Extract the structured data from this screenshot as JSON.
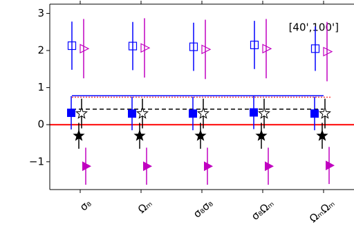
{
  "chart_data": {
    "type": "errorbar",
    "categories": [
      "σ₈",
      "Ωₘ",
      "σ₈σ₈",
      "σ₈Ωₘ",
      "ΩₘΩₘ"
    ],
    "annotation": "[40',100']",
    "ylim": [
      -1.75,
      3.25
    ],
    "yticks": [
      {
        "value": -1,
        "label": "−1"
      },
      0,
      1,
      2,
      3
    ],
    "series": [
      {
        "marker": "square-open",
        "color": "#0000ff",
        "values": [
          2.13,
          2.12,
          2.1,
          2.15,
          2.05
        ],
        "errors": [
          0.65,
          0.65,
          0.65,
          0.65,
          0.6
        ]
      },
      {
        "marker": "triangle-open",
        "color": "#c000c0",
        "values": [
          2.05,
          2.07,
          2.03,
          2.05,
          1.97
        ],
        "errors": [
          0.8,
          0.8,
          0.8,
          0.8,
          0.8
        ]
      },
      {
        "marker": "square-filled",
        "color": "#0000ff",
        "values": [
          0.32,
          0.3,
          0.3,
          0.33,
          0.3
        ],
        "errors": [
          0.45,
          0.45,
          0.45,
          0.45,
          0.45
        ]
      },
      {
        "marker": "star-open",
        "color": "#000000",
        "values": [
          0.3,
          0.3,
          0.3,
          0.3,
          0.3
        ],
        "errors": [
          0.4,
          0.4,
          0.4,
          0.4,
          0.4
        ]
      },
      {
        "marker": "star-filled",
        "color": "#000000",
        "values": [
          -0.3,
          -0.3,
          -0.3,
          -0.3,
          -0.3
        ],
        "errors": [
          0.35,
          0.35,
          0.35,
          0.35,
          0.35
        ]
      },
      {
        "marker": "triangle-filled",
        "color": "#c000c0",
        "values": [
          -1.12,
          -1.12,
          -1.12,
          -1.12,
          -1.1
        ],
        "errors": [
          0.5,
          0.5,
          0.5,
          0.5,
          0.5
        ]
      }
    ],
    "hlines": [
      {
        "y": 0.78,
        "color": "#0000ff",
        "style": "solid"
      },
      {
        "y": 0.74,
        "color": "#ff4040",
        "style": "dotted"
      },
      {
        "y": 0.42,
        "color": "#000000",
        "style": "dashed"
      },
      {
        "y": 0,
        "color": "#ff0000",
        "style": "solid"
      }
    ]
  }
}
